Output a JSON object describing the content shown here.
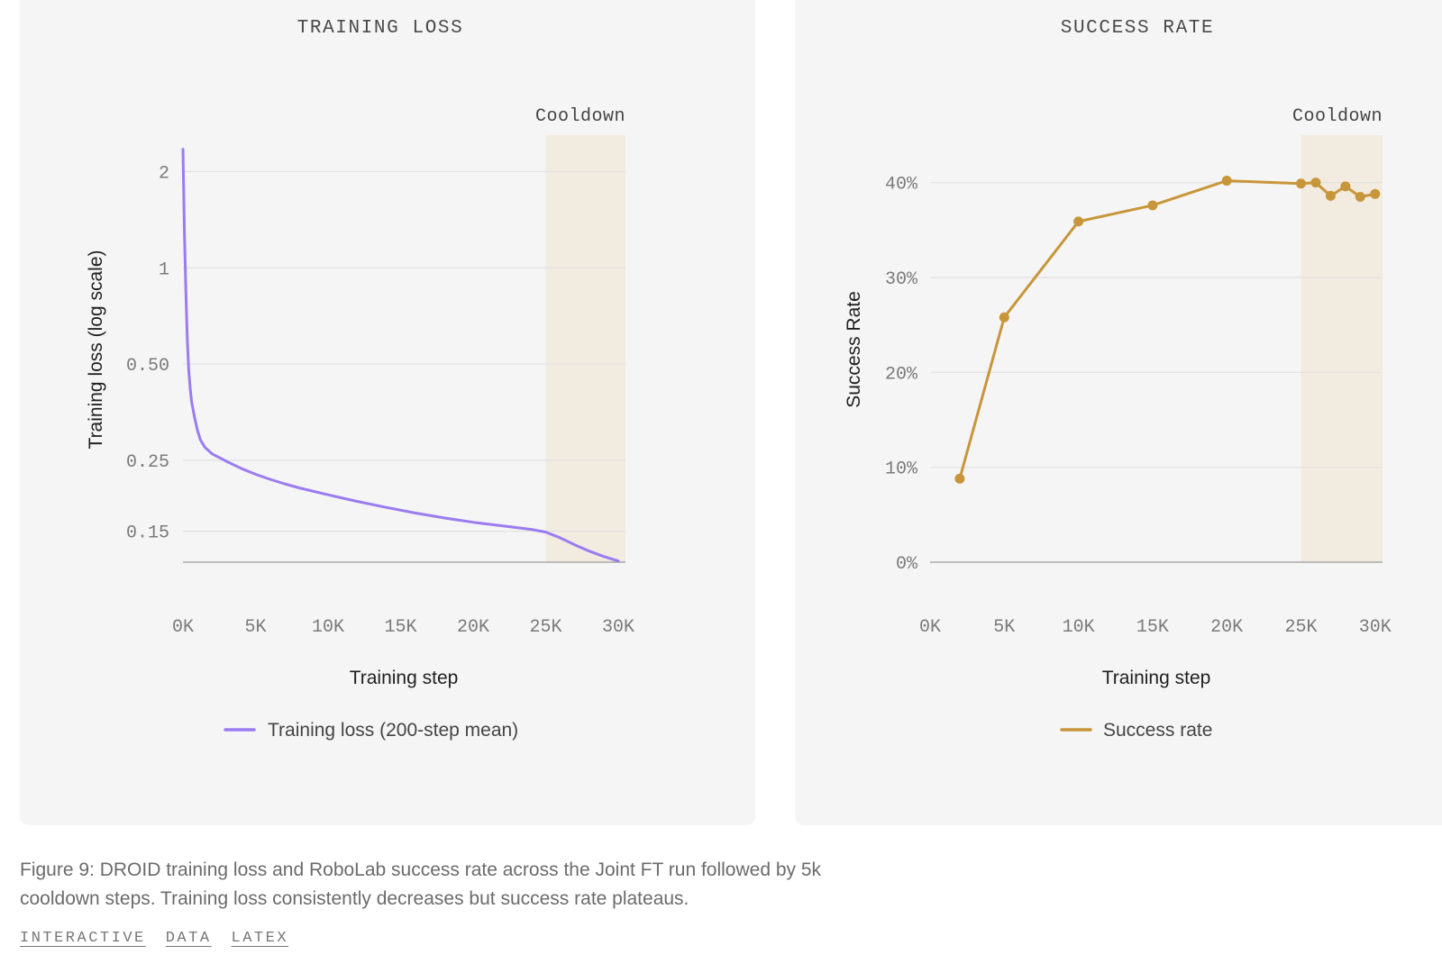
{
  "chart_data": [
    {
      "type": "line",
      "title": "TRAINING LOSS",
      "xlabel": "Training step",
      "ylabel": "Training loss (log scale)",
      "yscale": "log",
      "x_tick_labels": [
        "0K",
        "5K",
        "10K",
        "15K",
        "20K",
        "25K",
        "30K"
      ],
      "x_ticks": [
        0,
        5000,
        10000,
        15000,
        20000,
        25000,
        30000
      ],
      "y_tick_labels": [
        "2",
        "1",
        "0.50",
        "0.25",
        "0.15"
      ],
      "y_ticks": [
        2,
        1,
        0.5,
        0.25,
        0.15
      ],
      "xlim": [
        0,
        30500
      ],
      "ylim": [
        0.12,
        2.6
      ],
      "grid": true,
      "legend_position": "bottom",
      "cooldown": {
        "label": "Cooldown",
        "x_start": 25000,
        "x_end": 30500
      },
      "series": [
        {
          "name": "Training loss (200-step mean)",
          "color": "#9a7cf0",
          "x": [
            0,
            100,
            200,
            300,
            400,
            500,
            600,
            800,
            1000,
            1200,
            1500,
            2000,
            2500,
            3000,
            4000,
            5000,
            6000,
            7000,
            8000,
            10000,
            12000,
            14000,
            16000,
            18000,
            20000,
            22000,
            24000,
            25000,
            26000,
            27000,
            28000,
            29000,
            30000
          ],
          "y": [
            2.35,
            1.3,
            0.85,
            0.6,
            0.48,
            0.42,
            0.38,
            0.34,
            0.31,
            0.29,
            0.275,
            0.262,
            0.255,
            0.248,
            0.236,
            0.226,
            0.218,
            0.211,
            0.205,
            0.195,
            0.186,
            0.178,
            0.171,
            0.165,
            0.16,
            0.156,
            0.152,
            0.149,
            0.143,
            0.136,
            0.13,
            0.125,
            0.121
          ]
        }
      ]
    },
    {
      "type": "line",
      "title": "SUCCESS RATE",
      "xlabel": "Training step",
      "ylabel": "Success Rate",
      "x_tick_labels": [
        "0K",
        "5K",
        "10K",
        "15K",
        "20K",
        "25K",
        "30K"
      ],
      "x_ticks": [
        0,
        5000,
        10000,
        15000,
        20000,
        25000,
        30000
      ],
      "y_tick_labels": [
        "40%",
        "30%",
        "20%",
        "10%",
        "0%"
      ],
      "y_ticks": [
        40,
        30,
        20,
        10,
        0
      ],
      "xlim": [
        0,
        30500
      ],
      "ylim": [
        0,
        45
      ],
      "grid": true,
      "legend_position": "bottom",
      "cooldown": {
        "label": "Cooldown",
        "x_start": 25000,
        "x_end": 30500
      },
      "series": [
        {
          "name": "Success rate",
          "color": "#c8963a",
          "x": [
            2000,
            5000,
            10000,
            15000,
            20000,
            25000,
            26000,
            27000,
            28000,
            29000,
            30000
          ],
          "y": [
            8.8,
            25.8,
            35.9,
            37.6,
            40.2,
            39.9,
            40.0,
            38.6,
            39.6,
            38.5,
            38.8
          ]
        }
      ]
    }
  ],
  "caption": "Figure 9: DROID training loss and RoboLab success rate across the Joint FT run followed by 5k cooldown steps. Training loss consistently decreases but success rate plateaus.",
  "links": [
    "INTERACTIVE",
    "DATA",
    "LATEX"
  ],
  "colors": {
    "panel_bg": "#f5f5f5",
    "cooldown_band": "#f2ebe0",
    "loss": "#9a7cf0",
    "success": "#c8963a"
  }
}
